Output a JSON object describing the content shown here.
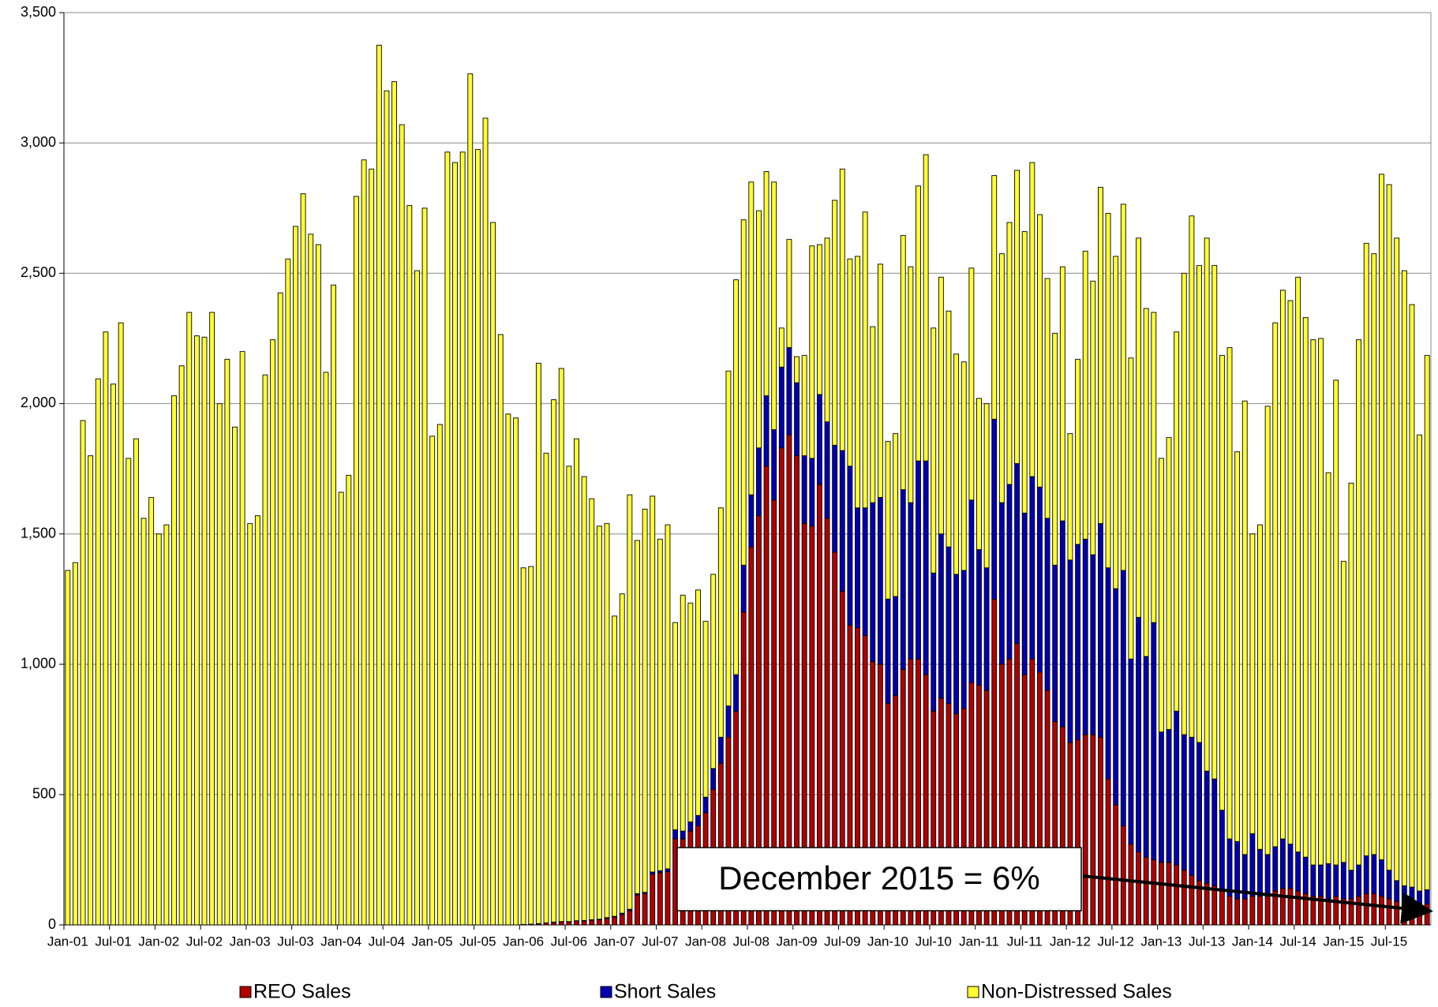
{
  "chart_data": {
    "type": "stacked_bar",
    "categories": [
      "Jan-01",
      null,
      null,
      null,
      null,
      null,
      "Jul-01",
      null,
      null,
      null,
      null,
      null,
      "Jan-02",
      null,
      null,
      null,
      null,
      null,
      "Jul-02",
      null,
      null,
      null,
      null,
      null,
      "Jan-03",
      null,
      null,
      null,
      null,
      null,
      "Jul-03",
      null,
      null,
      null,
      null,
      null,
      "Jan-04",
      null,
      null,
      null,
      null,
      null,
      "Jul-04",
      null,
      null,
      null,
      null,
      null,
      "Jan-05",
      null,
      null,
      null,
      null,
      null,
      "Jul-05",
      null,
      null,
      null,
      null,
      null,
      "Jan-06",
      null,
      null,
      null,
      null,
      null,
      "Jul-06",
      null,
      null,
      null,
      null,
      null,
      "Jan-07",
      null,
      null,
      null,
      null,
      null,
      "Jul-07",
      null,
      null,
      null,
      null,
      null,
      "Jan-08",
      null,
      null,
      null,
      null,
      null,
      "Jul-08",
      null,
      null,
      null,
      null,
      null,
      "Jan-09",
      null,
      null,
      null,
      null,
      null,
      "Jul-09",
      null,
      null,
      null,
      null,
      null,
      "Jan-10",
      null,
      null,
      null,
      null,
      null,
      "Jul-10",
      null,
      null,
      null,
      null,
      null,
      "Jan-11",
      null,
      null,
      null,
      null,
      null,
      "Jul-11",
      null,
      null,
      null,
      null,
      null,
      "Jan-12",
      null,
      null,
      null,
      null,
      null,
      "Jul-12",
      null,
      null,
      null,
      null,
      null,
      "Jan-13",
      null,
      null,
      null,
      null,
      null,
      "Jul-13",
      null,
      null,
      null,
      null,
      null,
      "Jan-14",
      null,
      null,
      null,
      null,
      null,
      "Jul-14",
      null,
      null,
      null,
      null,
      null,
      "Jan-15",
      null,
      null,
      null,
      null,
      null,
      "Jul-15",
      null,
      null,
      null,
      null,
      null
    ],
    "series": [
      {
        "name": "REO Sales",
        "color": "#b00000",
        "values": [
          0,
          0,
          0,
          0,
          0,
          0,
          0,
          0,
          0,
          0,
          0,
          0,
          0,
          0,
          0,
          0,
          0,
          0,
          0,
          0,
          0,
          0,
          0,
          0,
          0,
          0,
          0,
          0,
          0,
          0,
          0,
          0,
          0,
          0,
          0,
          0,
          0,
          0,
          0,
          0,
          0,
          0,
          0,
          0,
          0,
          0,
          0,
          0,
          0,
          0,
          0,
          0,
          0,
          0,
          0,
          0,
          0,
          0,
          0,
          0,
          2,
          3,
          5,
          8,
          10,
          12,
          12,
          15,
          15,
          18,
          20,
          25,
          30,
          40,
          55,
          115,
          120,
          195,
          200,
          205,
          330,
          330,
          360,
          380,
          430,
          520,
          620,
          720,
          820,
          1200,
          1450,
          1570,
          1760,
          1630,
          1830,
          1880,
          1800,
          1540,
          1530,
          1690,
          1560,
          1430,
          1280,
          1150,
          1140,
          1110,
          1010,
          1000,
          850,
          880,
          980,
          1020,
          1020,
          960,
          820,
          870,
          850,
          810,
          830,
          930,
          920,
          900,
          1250,
          1000,
          1020,
          1080,
          960,
          1020,
          970,
          900,
          780,
          760,
          700,
          710,
          730,
          730,
          720,
          560,
          460,
          380,
          310,
          280,
          260,
          250,
          240,
          240,
          230,
          210,
          190,
          170,
          160,
          150,
          130,
          110,
          100,
          100,
          110,
          110,
          110,
          130,
          140,
          140,
          130,
          120,
          110,
          110,
          100,
          110,
          100,
          100,
          110,
          120,
          120,
          110,
          100,
          90,
          80,
          80,
          75,
          80
        ]
      },
      {
        "name": "Short Sales",
        "color": "#0000b0",
        "values": [
          0,
          0,
          0,
          0,
          0,
          0,
          0,
          0,
          0,
          0,
          0,
          0,
          0,
          0,
          0,
          0,
          0,
          0,
          0,
          0,
          0,
          0,
          0,
          0,
          0,
          0,
          0,
          0,
          0,
          0,
          0,
          0,
          0,
          0,
          0,
          0,
          0,
          0,
          0,
          0,
          0,
          0,
          0,
          0,
          0,
          0,
          0,
          0,
          0,
          0,
          0,
          0,
          0,
          0,
          0,
          0,
          0,
          0,
          0,
          0,
          0,
          0,
          0,
          0,
          1,
          1,
          1,
          1,
          2,
          2,
          2,
          3,
          3,
          5,
          5,
          5,
          5,
          8,
          8,
          10,
          35,
          30,
          35,
          40,
          60,
          80,
          100,
          120,
          140,
          180,
          200,
          260,
          270,
          270,
          310,
          335,
          280,
          260,
          260,
          345,
          370,
          410,
          540,
          610,
          460,
          490,
          610,
          640,
          400,
          380,
          690,
          600,
          760,
          820,
          530,
          630,
          600,
          535,
          530,
          700,
          520,
          470,
          690,
          620,
          670,
          690,
          620,
          700,
          710,
          660,
          600,
          790,
          700,
          750,
          750,
          690,
          820,
          810,
          830,
          980,
          710,
          900,
          770,
          910,
          500,
          510,
          590,
          520,
          530,
          530,
          430,
          410,
          310,
          220,
          220,
          170,
          240,
          180,
          160,
          170,
          190,
          170,
          150,
          140,
          120,
          120,
          135,
          120,
          140,
          110,
          120,
          145,
          150,
          140,
          110,
          80,
          70,
          65,
          55,
          55
        ]
      },
      {
        "name": "Non-Distressed Sales",
        "color": "#ffff33",
        "values": [
          1360,
          1390,
          1935,
          1800,
          2095,
          2275,
          2075,
          2310,
          1790,
          1865,
          1560,
          1640,
          1500,
          1535,
          2030,
          2145,
          2350,
          2260,
          2255,
          2350,
          2000,
          2170,
          1910,
          2200,
          1540,
          1570,
          2110,
          2245,
          2425,
          2555,
          2680,
          2805,
          2650,
          2610,
          2120,
          2455,
          1660,
          1725,
          2795,
          2935,
          2900,
          3375,
          3200,
          3235,
          3070,
          2760,
          2510,
          2750,
          1875,
          1920,
          2965,
          2925,
          2965,
          3265,
          2975,
          3095,
          2695,
          2265,
          1960,
          1945,
          1368,
          1372,
          2150,
          1802,
          2004,
          2122,
          1747,
          1849,
          1703,
          1615,
          1508,
          1512,
          1152,
          1225,
          1590,
          1355,
          1470,
          1442,
          1272,
          1320,
          795,
          905,
          840,
          865,
          675,
          745,
          880,
          1285,
          1515,
          1325,
          1200,
          910,
          860,
          950,
          150,
          415,
          100,
          385,
          815,
          575,
          705,
          940,
          1080,
          795,
          965,
          1135,
          675,
          895,
          605,
          625,
          975,
          905,
          1055,
          1175,
          940,
          985,
          905,
          845,
          800,
          890,
          580,
          630,
          935,
          955,
          1005,
          1125,
          1080,
          1205,
          1045,
          920,
          890,
          975,
          485,
          710,
          1105,
          1050,
          1290,
          1360,
          1275,
          1405,
          1155,
          1455,
          1335,
          1190,
          1050,
          1120,
          1455,
          1770,
          2000,
          1830,
          2045,
          1970,
          1745,
          1885,
          1495,
          1740,
          1150,
          1245,
          1720,
          2010,
          2105,
          2085,
          2205,
          2070,
          2015,
          2020,
          1500,
          1860,
          1155,
          1485,
          2015,
          2350,
          2305,
          2630,
          2630,
          2465,
          2360,
          2235,
          1750,
          2050
        ]
      }
    ],
    "ylim": [
      0,
      3500
    ],
    "yticks": [
      0,
      500,
      {
        "value": 1000,
        "label": "1,000"
      },
      {
        "value": 1500,
        "label": "1,500"
      },
      {
        "value": 2000,
        "label": "2,000"
      },
      {
        "value": 2500,
        "label": "2,500"
      },
      {
        "value": 3000,
        "label": "3,000"
      },
      {
        "value": 3500,
        "label": "3,500"
      }
    ],
    "grid": true,
    "legend": "bottom",
    "annotation": "December 2015 = 6%"
  }
}
